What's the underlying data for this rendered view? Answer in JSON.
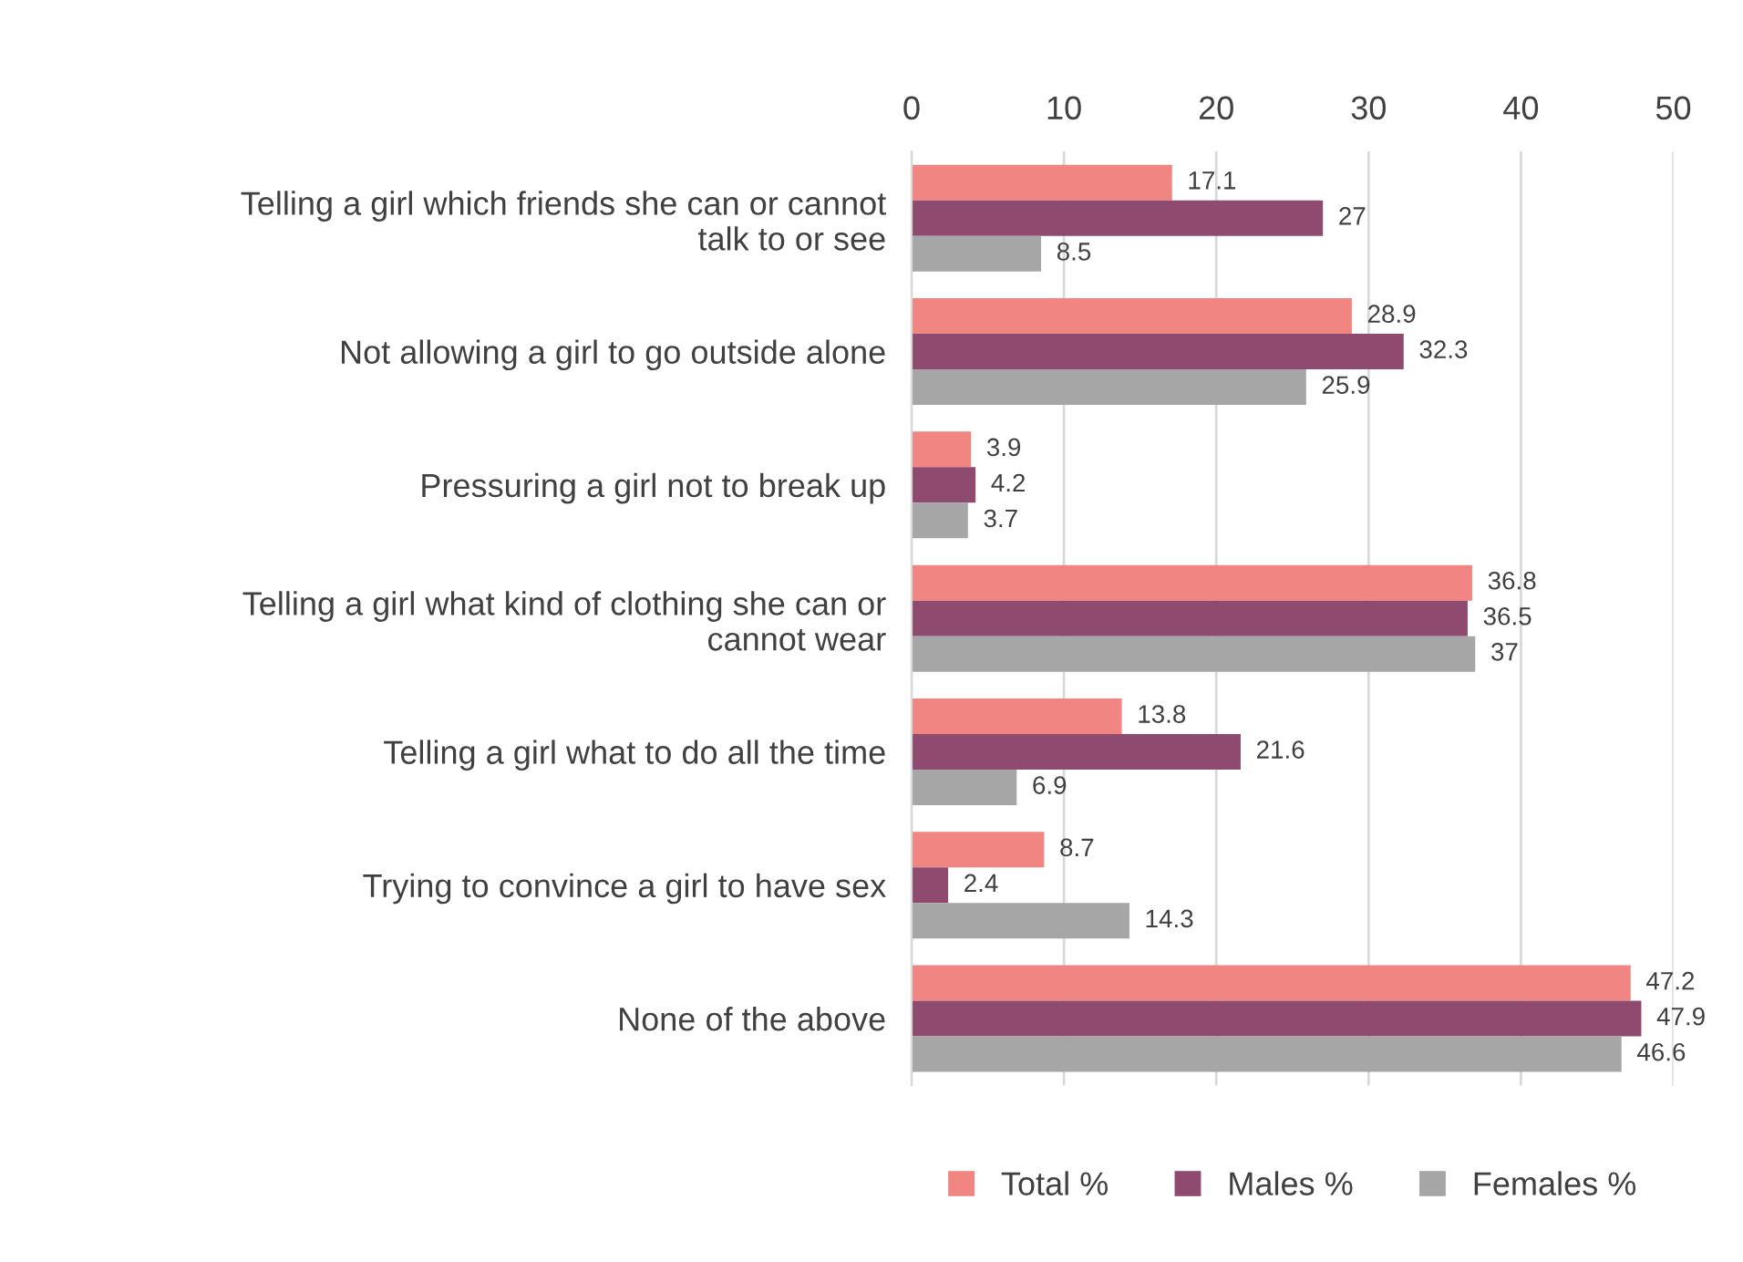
{
  "chart_data": {
    "type": "bar",
    "orientation": "horizontal",
    "categories": [
      "Telling a girl which friends she can or cannot\ntalk to or see",
      "Not allowing a girl to go outside alone",
      "Pressuring a girl not to break up",
      "Telling a girl what kind of clothing she can or\ncannot wear",
      "Telling a girl what to do all the time",
      "Trying to convince a girl to have sex",
      "None of the above"
    ],
    "series": [
      {
        "name": "Total %",
        "color": "#f08582",
        "values": [
          17.1,
          28.9,
          3.9,
          36.8,
          13.8,
          8.7,
          47.2
        ]
      },
      {
        "name": "Males %",
        "color": "#8f4a6f",
        "values": [
          27,
          32.3,
          4.2,
          36.5,
          21.6,
          2.4,
          47.9
        ]
      },
      {
        "name": "Females %",
        "color": "#a6a6a6",
        "values": [
          8.5,
          25.9,
          3.7,
          37,
          6.9,
          14.3,
          46.6
        ]
      }
    ],
    "xlim": [
      0,
      50
    ],
    "xticks": [
      0,
      10,
      20,
      30,
      40,
      50
    ],
    "grid": "x",
    "legend": "bottom",
    "data_labels": true
  }
}
